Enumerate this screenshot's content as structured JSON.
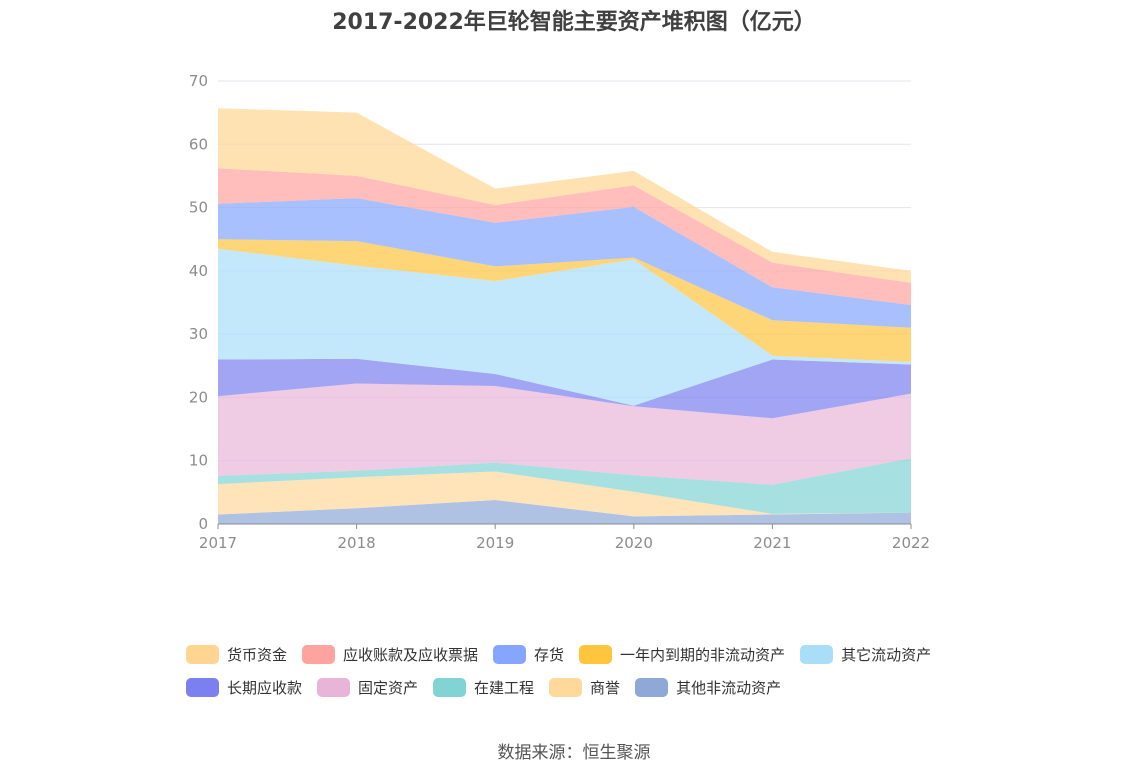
{
  "title": "2017-2022年巨轮智能主要资产堆积图（亿元）",
  "source": "数据来源：恒生聚源",
  "chart_data": {
    "type": "area",
    "stacked": true,
    "title": "2017-2022年巨轮智能主要资产堆积图（亿元）",
    "x": [
      "2017",
      "2018",
      "2019",
      "2020",
      "2021",
      "2022"
    ],
    "y_ticks": [
      "0",
      "10",
      "20",
      "30",
      "40",
      "50",
      "60",
      "70"
    ],
    "ylim": [
      0,
      70
    ],
    "grid": true,
    "legend_position": "bottom",
    "series": [
      {
        "name": "其他非流动资产",
        "color": "#8fa8d8",
        "values": [
          1.5,
          2.5,
          3.8,
          1.2,
          1.5,
          1.8
        ]
      },
      {
        "name": "商誉",
        "color": "#ffd99c",
        "values": [
          4.8,
          4.9,
          4.5,
          3.9,
          0.1,
          0
        ]
      },
      {
        "name": "在建工程",
        "color": "#82d3d3",
        "values": [
          1.3,
          1.0,
          1.4,
          2.6,
          4.6,
          8.6
        ]
      },
      {
        "name": "固定资产",
        "color": "#e8b5d8",
        "values": [
          12.6,
          13.8,
          12.1,
          10.9,
          10.5,
          10.2
        ]
      },
      {
        "name": "长期应收款",
        "color": "#7b7ff0",
        "values": [
          5.8,
          3.9,
          1.9,
          0.1,
          9.3,
          4.6
        ]
      },
      {
        "name": "其它流动资产",
        "color": "#a9def9",
        "values": [
          17.5,
          14.7,
          14.7,
          23.1,
          0.6,
          0.4
        ]
      },
      {
        "name": "一年内到期的非流动资产",
        "color": "#ffc53d",
        "values": [
          1.5,
          3.9,
          2.3,
          0.3,
          5.6,
          5.4
        ]
      },
      {
        "name": "存货",
        "color": "#85a5ff",
        "values": [
          5.6,
          6.8,
          6.9,
          8.0,
          5.2,
          3.6
        ]
      },
      {
        "name": "应收账款及应收票据",
        "color": "#ffa39e",
        "values": [
          5.6,
          3.5,
          2.8,
          3.4,
          3.9,
          3.5
        ]
      },
      {
        "name": "货币资金",
        "color": "#ffd591",
        "values": [
          9.5,
          10.0,
          2.6,
          2.3,
          1.7,
          1.9
        ]
      }
    ]
  },
  "legend": {
    "rows": [
      [
        {
          "label": "货币资金",
          "color": "#ffd591"
        },
        {
          "label": "应收账款及应收票据",
          "color": "#ffa39e"
        },
        {
          "label": "存货",
          "color": "#85a5ff"
        },
        {
          "label": "一年内到期的非流动资产",
          "color": "#ffc53d"
        },
        {
          "label": "其它流动资产",
          "color": "#a9def9"
        }
      ],
      [
        {
          "label": "长期应收款",
          "color": "#7b7ff0"
        },
        {
          "label": "固定资产",
          "color": "#e8b5d8"
        },
        {
          "label": "在建工程",
          "color": "#82d3d3"
        },
        {
          "label": "商誉",
          "color": "#ffd99c"
        },
        {
          "label": "其他非流动资产",
          "color": "#8fa8d8"
        }
      ]
    ]
  }
}
